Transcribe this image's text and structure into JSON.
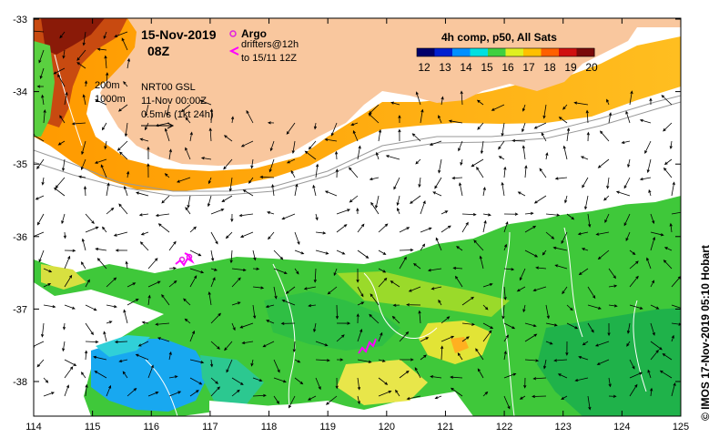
{
  "map": {
    "date_title": "15-Nov-2019",
    "time_title": "08Z",
    "colorbar_title": "4h comp, p50, All Sats",
    "colorbar_ticks": [
      "12",
      "13",
      "14",
      "15",
      "16",
      "17",
      "18",
      "19",
      "20"
    ],
    "colorbar_colors": [
      "#00006a",
      "#0020d0",
      "#0090ff",
      "#00e0e0",
      "#40d040",
      "#e0f020",
      "#ffc000",
      "#ff6000",
      "#d01010",
      "#7a0a0a"
    ],
    "legend": {
      "argo_label": "Argo",
      "drifters_label": "drifters@12h",
      "drifters_until": "to 15/11 12Z",
      "isobath_200": "200m",
      "isobath_1000": "1000m",
      "model_label": "NRT00 GSL",
      "model_date": "11-Nov 00:00Z",
      "scale_label": "0.5m/s (1kt 24h)"
    },
    "x_ticks": [
      "114",
      "115",
      "116",
      "117",
      "118",
      "119",
      "120",
      "121",
      "122",
      "123",
      "124",
      "125"
    ],
    "y_ticks": [
      "-33",
      "-34",
      "-35",
      "-36",
      "-37",
      "-38"
    ],
    "credit": "© IMOS 17-Nov-2019 05:10 Hobart",
    "colors": {
      "land": "#f9c79e",
      "argo": "#e020e0",
      "drifter": "#ff00ff"
    }
  }
}
